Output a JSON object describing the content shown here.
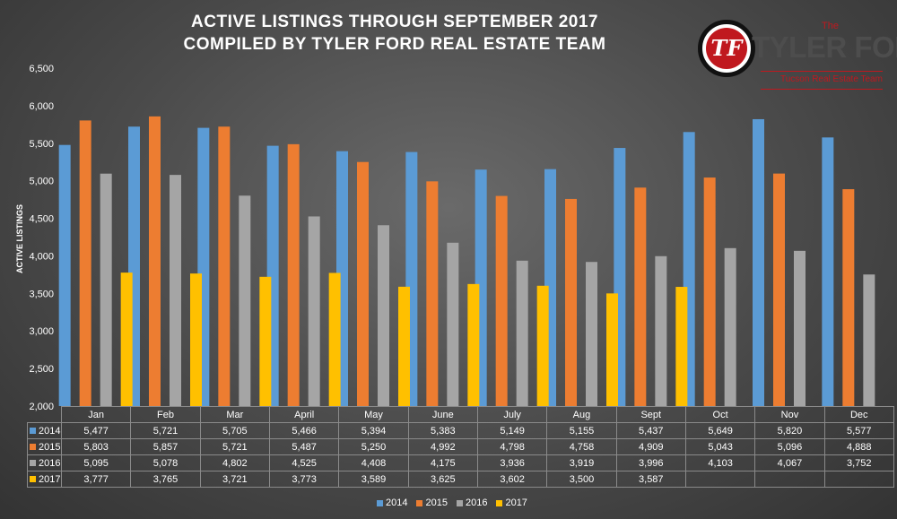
{
  "title_line1": "ACTIVE LISTINGS THROUGH SEPTEMBER 2017",
  "title_line2": "COMPILED BY TYLER FORD REAL ESTATE TEAM",
  "logo": {
    "mark": "TF",
    "the": "The",
    "name": "TYLER FORD",
    "sub": "Tucson Real Estate Team"
  },
  "colors": {
    "2014": "#5b9bd5",
    "2015": "#ed7d31",
    "2016": "#a5a5a5",
    "2017": "#ffc000"
  },
  "chart_data": {
    "type": "bar",
    "title": "ACTIVE LISTINGS THROUGH SEPTEMBER 2017",
    "subtitle": "COMPILED BY TYLER FORD REAL ESTATE TEAM",
    "xlabel": "",
    "ylabel": "ACTIVE LISTINGS",
    "ylim": [
      2000,
      6500
    ],
    "yticks": [
      "2,000",
      "2,500",
      "3,000",
      "3,500",
      "4,000",
      "4,500",
      "5,000",
      "5,500",
      "6,000",
      "6,500"
    ],
    "ytick_values": [
      2000,
      2500,
      3000,
      3500,
      4000,
      4500,
      5000,
      5500,
      6000,
      6500
    ],
    "categories": [
      "Jan",
      "Feb",
      "Mar",
      "April",
      "May",
      "June",
      "July",
      "Aug",
      "Sept",
      "Oct",
      "Nov",
      "Dec"
    ],
    "legend_position": "bottom",
    "grid": false,
    "series": [
      {
        "name": "2014",
        "values": [
          5477,
          5721,
          5705,
          5466,
          5394,
          5383,
          5149,
          5155,
          5437,
          5649,
          5820,
          5577
        ],
        "labels": [
          "5,477",
          "5,721",
          "5,705",
          "5,466",
          "5,394",
          "5,383",
          "5,149",
          "5,155",
          "5,437",
          "5,649",
          "5,820",
          "5,577"
        ]
      },
      {
        "name": "2015",
        "values": [
          5803,
          5857,
          5721,
          5487,
          5250,
          4992,
          4798,
          4758,
          4909,
          5043,
          5096,
          4888
        ],
        "labels": [
          "5,803",
          "5,857",
          "5,721",
          "5,487",
          "5,250",
          "4,992",
          "4,798",
          "4,758",
          "4,909",
          "5,043",
          "5,096",
          "4,888"
        ]
      },
      {
        "name": "2016",
        "values": [
          5095,
          5078,
          4802,
          4525,
          4408,
          4175,
          3936,
          3919,
          3996,
          4103,
          4067,
          3752
        ],
        "labels": [
          "5,095",
          "5,078",
          "4,802",
          "4,525",
          "4,408",
          "4,175",
          "3,936",
          "3,919",
          "3,996",
          "4,103",
          "4,067",
          "3,752"
        ]
      },
      {
        "name": "2017",
        "values": [
          3777,
          3765,
          3721,
          3773,
          3589,
          3625,
          3602,
          3500,
          3587,
          null,
          null,
          null
        ],
        "labels": [
          "3,777",
          "3,765",
          "3,721",
          "3,773",
          "3,589",
          "3,625",
          "3,602",
          "3,500",
          "3,587",
          "",
          "",
          ""
        ]
      }
    ]
  }
}
